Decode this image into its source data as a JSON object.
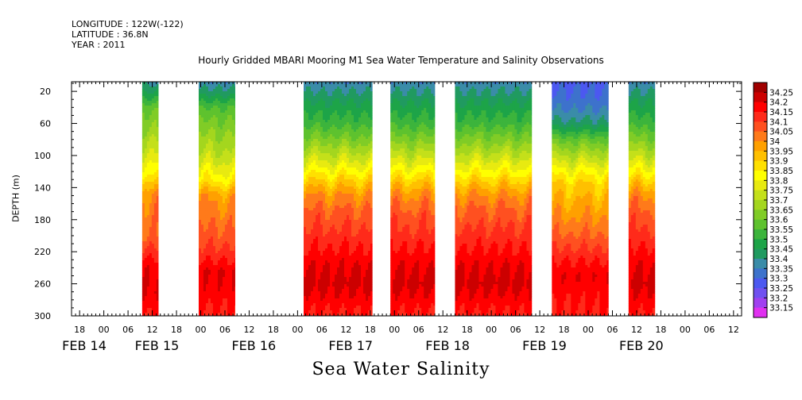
{
  "header": {
    "longitude": "LONGITUDE : 122W(-122)",
    "latitude": "LATITUDE : 36.8N",
    "year": "YEAR : 2011"
  },
  "chart_data": {
    "type": "heatmap",
    "title": "Hourly Gridded MBARI Mooring M1 Sea Water Temperature and Salinity Observations",
    "caption": "Sea Water Salinity",
    "ylabel": "DEPTH (m)",
    "y_axis": {
      "reversed": true,
      "range": [
        8,
        300
      ],
      "ticks": [
        20,
        60,
        100,
        140,
        180,
        220,
        260,
        300
      ]
    },
    "x_axis": {
      "hour_ticks": [
        {
          "label": "18",
          "hours": 18
        },
        {
          "label": "00",
          "hours": 24
        },
        {
          "label": "06",
          "hours": 30
        },
        {
          "label": "12",
          "hours": 36
        },
        {
          "label": "18",
          "hours": 42
        },
        {
          "label": "00",
          "hours": 48
        },
        {
          "label": "06",
          "hours": 54
        },
        {
          "label": "12",
          "hours": 60
        },
        {
          "label": "18",
          "hours": 66
        },
        {
          "label": "00",
          "hours": 72
        },
        {
          "label": "06",
          "hours": 78
        },
        {
          "label": "12",
          "hours": 84
        },
        {
          "label": "18",
          "hours": 90
        },
        {
          "label": "00",
          "hours": 96
        },
        {
          "label": "06",
          "hours": 102
        },
        {
          "label": "12",
          "hours": 108
        },
        {
          "label": "18",
          "hours": 114
        },
        {
          "label": "00",
          "hours": 120
        },
        {
          "label": "06",
          "hours": 126
        },
        {
          "label": "12",
          "hours": 132
        },
        {
          "label": "18",
          "hours": 138
        },
        {
          "label": "00",
          "hours": 144
        },
        {
          "label": "06",
          "hours": 150
        },
        {
          "label": "12",
          "hours": 156
        },
        {
          "label": "18",
          "hours": 162
        },
        {
          "label": "00",
          "hours": 168
        },
        {
          "label": "06",
          "hours": 174
        },
        {
          "label": "12",
          "hours": 180
        }
      ],
      "date_labels": [
        {
          "label": "FEB 14",
          "hours": 18
        },
        {
          "label": "FEB 15",
          "hours": 36
        },
        {
          "label": "FEB 16",
          "hours": 60
        },
        {
          "label": "FEB 17",
          "hours": 84
        },
        {
          "label": "FEB 18",
          "hours": 108
        },
        {
          "label": "FEB 19",
          "hours": 132
        },
        {
          "label": "FEB 20",
          "hours": 156
        }
      ]
    },
    "data_blocks": [
      {
        "start": 33.5,
        "end": 37.5,
        "profile": "partial"
      },
      {
        "start": 47.5,
        "end": 56.5,
        "profile": "mid"
      },
      {
        "start": 73.5,
        "end": 90.5,
        "profile": "full"
      },
      {
        "start": 95,
        "end": 106,
        "profile": "full"
      },
      {
        "start": 111,
        "end": 130,
        "profile": "full"
      },
      {
        "start": 135,
        "end": 149,
        "profile": "deep"
      },
      {
        "start": 154,
        "end": 160.5,
        "profile": "full"
      }
    ],
    "levels": [
      33.15,
      33.2,
      33.25,
      33.3,
      33.35,
      33.4,
      33.45,
      33.5,
      33.55,
      33.6,
      33.65,
      33.7,
      33.75,
      33.8,
      33.85,
      33.9,
      33.95,
      34,
      34.05,
      34.1,
      34.15,
      34.2,
      34.25
    ],
    "colors": [
      "#e030f0",
      "#a040f0",
      "#7050f0",
      "#4c58f0",
      "#3d72cc",
      "#3a8ca8",
      "#209a60",
      "#1da448",
      "#3cb43c",
      "#5ec22e",
      "#80cc26",
      "#a4d61e",
      "#c4e01a",
      "#e8ea10",
      "#ffff00",
      "#ffe000",
      "#ffc000",
      "#ffa000",
      "#ff7a1a",
      "#ff5020",
      "#ff2a1a",
      "#ff0000",
      "#cc0000",
      "#a00000"
    ],
    "legend_labels": [
      "34.25",
      "34.2",
      "34.15",
      "34.1",
      "34.05",
      "34",
      "33.95",
      "33.9",
      "33.85",
      "33.8",
      "33.75",
      "33.7",
      "33.65",
      "33.6",
      "33.55",
      "33.5",
      "33.45",
      "33.4",
      "33.35",
      "33.3",
      "33.25",
      "33.2",
      "33.15"
    ]
  }
}
